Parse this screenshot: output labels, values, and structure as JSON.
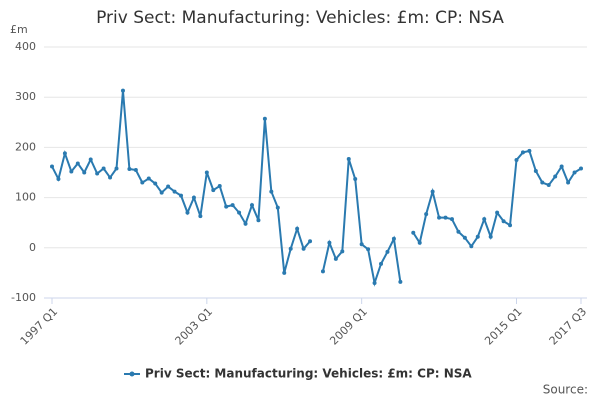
{
  "chart_data": {
    "type": "line",
    "title": "Priv Sect: Manufacturing: Vehicles: £m: CP: NSA",
    "y_label": "£m",
    "source": "Source:",
    "categories": [
      "1997 Q1",
      null,
      null,
      null,
      null,
      null,
      null,
      null,
      null,
      null,
      null,
      null,
      null,
      null,
      null,
      null,
      null,
      null,
      null,
      null,
      null,
      null,
      null,
      null,
      "2003 Q1",
      null,
      null,
      null,
      null,
      null,
      null,
      null,
      null,
      null,
      null,
      null,
      null,
      null,
      null,
      null,
      null,
      null,
      null,
      null,
      null,
      null,
      null,
      null,
      "2009 Q1",
      null,
      null,
      null,
      null,
      null,
      null,
      null,
      null,
      null,
      null,
      null,
      null,
      null,
      null,
      null,
      null,
      null,
      null,
      null,
      null,
      null,
      null,
      null,
      "2015 Q1",
      null,
      null,
      null,
      null,
      null,
      null,
      null,
      null,
      null,
      "2017 Q3"
    ],
    "series": [
      {
        "name": "Priv Sect: Manufacturing: Vehicles: £m: CP: NSA",
        "color": "#2a7ab0",
        "values": [
          162,
          137,
          188,
          152,
          168,
          150,
          176,
          148,
          158,
          140,
          158,
          313,
          157,
          155,
          130,
          138,
          128,
          110,
          122,
          112,
          104,
          70,
          100,
          63,
          150,
          115,
          123,
          82,
          85,
          70,
          48,
          85,
          55,
          257,
          112,
          80,
          -50,
          -2,
          38,
          -2,
          13,
          null,
          -47,
          10,
          -22,
          -7,
          177,
          137,
          7,
          -3,
          -70,
          -32,
          -8,
          18,
          -68,
          null,
          30,
          10,
          67,
          112,
          60,
          60,
          57,
          32,
          20,
          3,
          22,
          57,
          22,
          70,
          53,
          45,
          175,
          190,
          193,
          153,
          130,
          125,
          142,
          162,
          130,
          150,
          158
        ]
      }
    ],
    "ylim": [
      -100,
      400
    ],
    "yticks": [
      -100,
      0,
      100,
      200,
      300,
      400
    ],
    "grid": true
  }
}
